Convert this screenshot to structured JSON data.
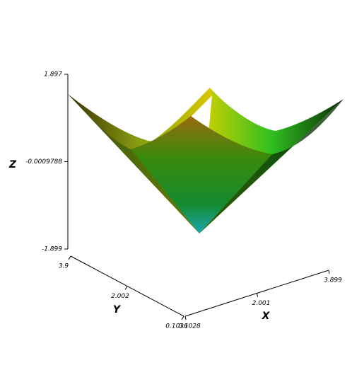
{
  "chart_data": {
    "type": "surface",
    "xlabel": "X",
    "ylabel": "Y",
    "zlabel": "Z",
    "xlim": [
      0.1028,
      3.899
    ],
    "xticks": [
      0.1028,
      2.001,
      3.899
    ],
    "ylim": [
      0.1036,
      3.9
    ],
    "yticks": [
      0.1036,
      2.002,
      3.9
    ],
    "zlim": [
      -1.899,
      1.897
    ],
    "zticks": [
      -1.899,
      -0.0009788,
      1.897
    ]
  }
}
